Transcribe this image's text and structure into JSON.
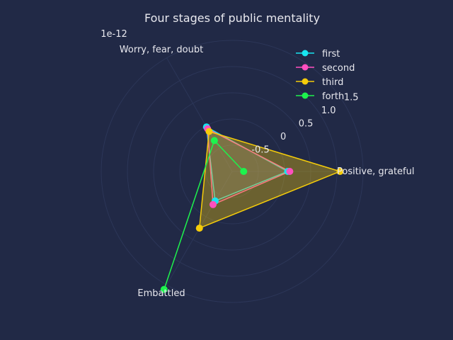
{
  "chart_data": {
    "type": "radar",
    "title": "Four stages of public mentality",
    "scale_note": "1e-12",
    "axes": [
      "Positive, grateful",
      "Worry, fear, doubt",
      "Embattled"
    ],
    "radial_ticks": [
      "-0.5",
      "0",
      "0.5",
      "1.0",
      "1.5"
    ],
    "radial_range": [
      -1.0,
      1.5
    ],
    "grid": true,
    "legend_position": "top-right",
    "series": [
      {
        "name": "first",
        "color": "#18e5f0",
        "values": [
          0.06,
          -0.02,
          -0.35
        ]
      },
      {
        "name": "second",
        "color": "#ff4fbf",
        "values": [
          0.1,
          -0.06,
          -0.27
        ]
      },
      {
        "name": "third",
        "color": "#f5cc0a",
        "values": [
          1.06,
          -0.12,
          0.25
        ]
      },
      {
        "name": "forth",
        "color": "#1df34d",
        "values": [
          -0.78,
          -0.32,
          1.6
        ]
      }
    ],
    "background_color": "#212946",
    "grid_color": "#2c3658"
  }
}
